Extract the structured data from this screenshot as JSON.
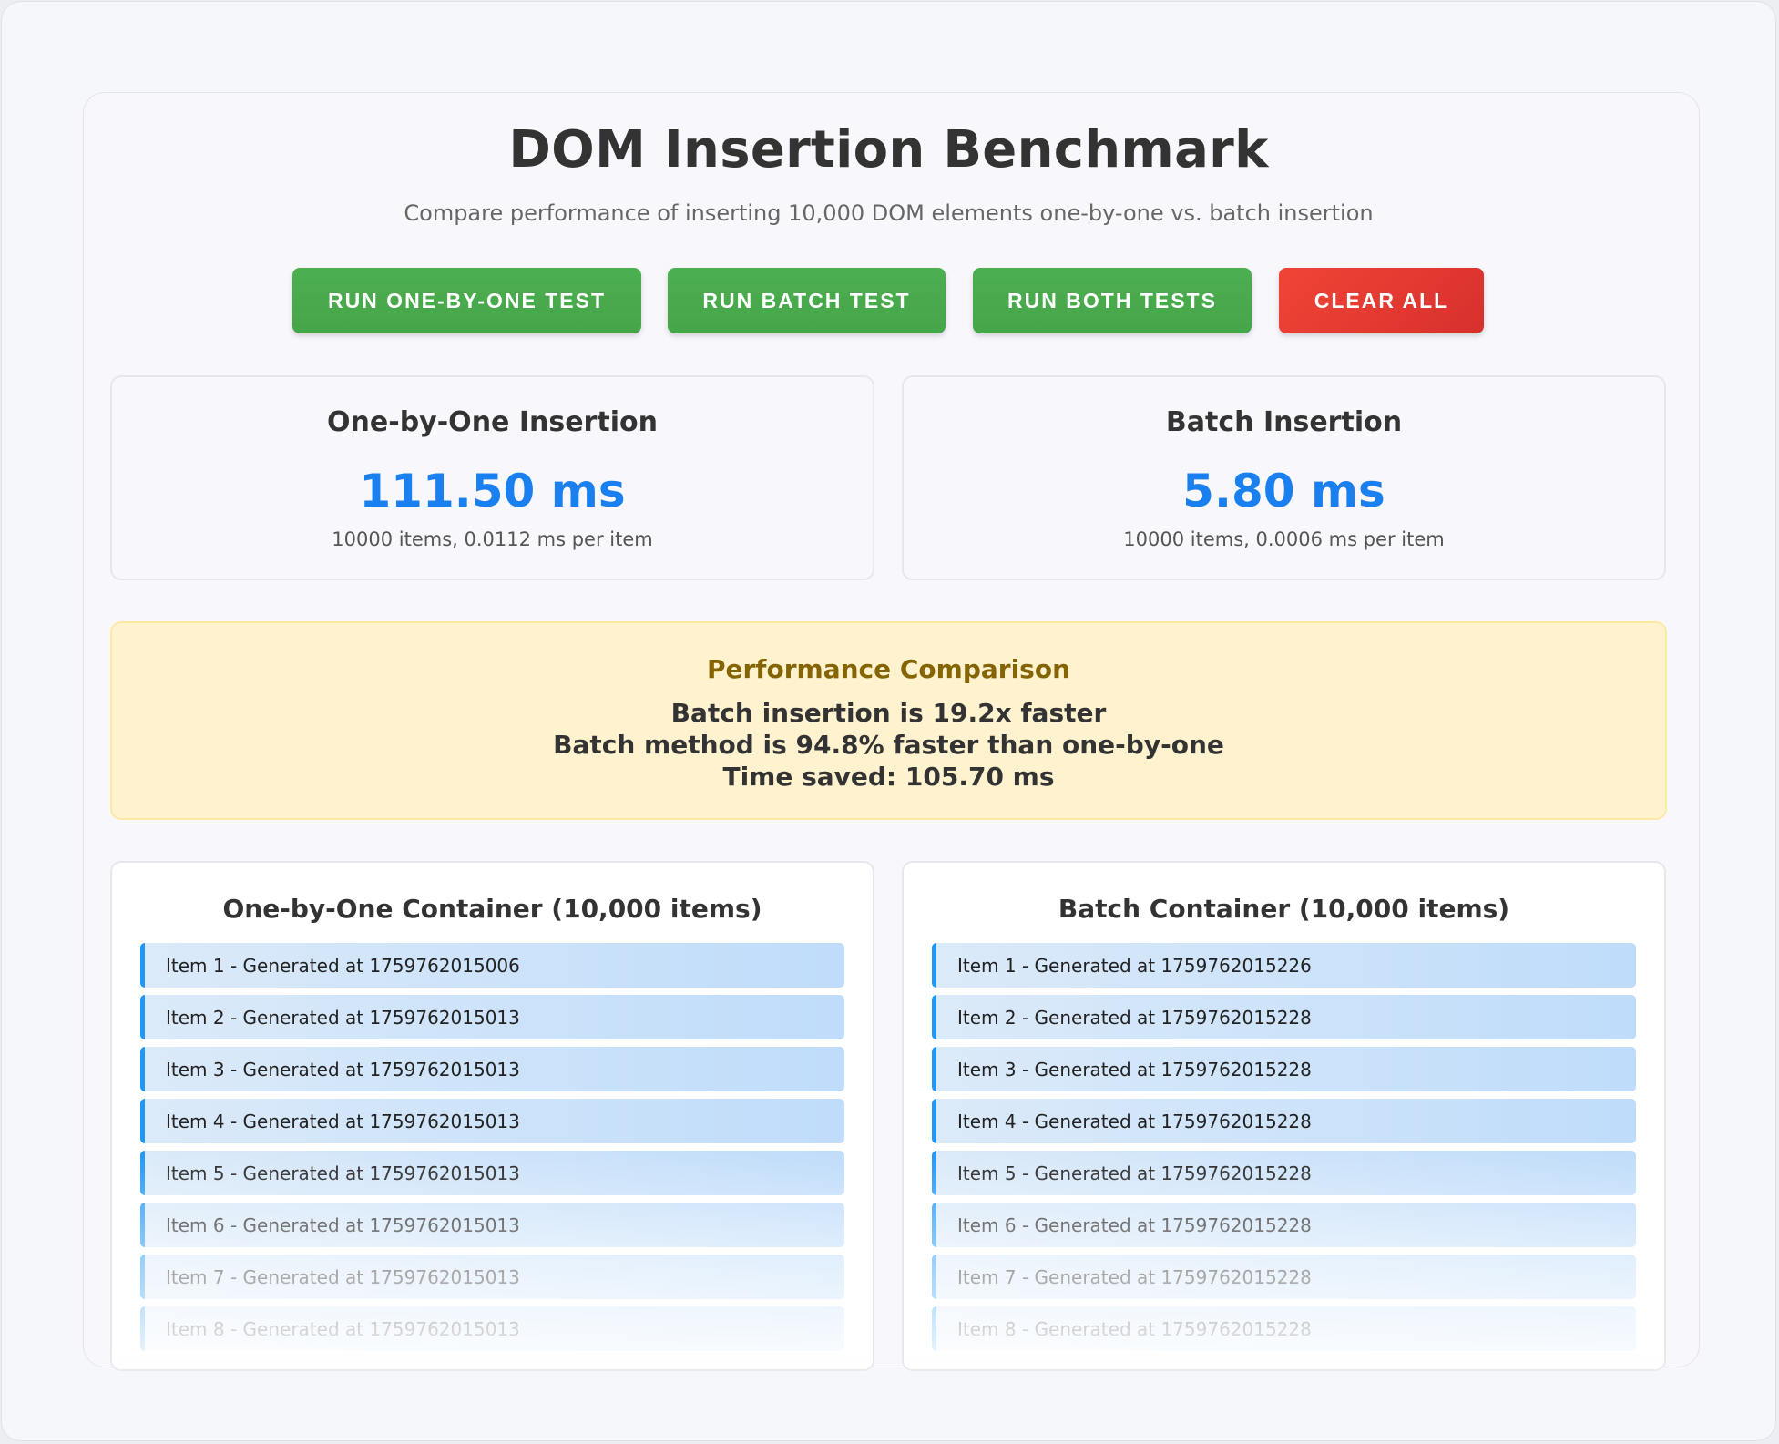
{
  "header": {
    "title": "DOM Insertion Benchmark",
    "subtitle": "Compare performance of inserting 10,000 DOM elements one-by-one vs. batch insertion"
  },
  "buttons": {
    "run_one_by_one": "RUN ONE-BY-ONE TEST",
    "run_batch": "RUN BATCH TEST",
    "run_both": "RUN BOTH TESTS",
    "clear_all": "CLEAR ALL"
  },
  "stats": {
    "one_by_one": {
      "title": "One-by-One Insertion",
      "value": "111.50 ms",
      "detail": "10000 items, 0.0112 ms per item"
    },
    "batch": {
      "title": "Batch Insertion",
      "value": "5.80 ms",
      "detail": "10000 items, 0.0006 ms per item"
    }
  },
  "comparison": {
    "title": "Performance Comparison",
    "line1": "Batch insertion is 19.2x faster",
    "line2": "Batch method is 94.8% faster than one-by-one",
    "line3": "Time saved: 105.70 ms"
  },
  "containers": {
    "one_by_one": {
      "title": "One-by-One Container (10,000 items)",
      "items": [
        "Item 1 - Generated at 1759762015006",
        "Item 2 - Generated at 1759762015013",
        "Item 3 - Generated at 1759762015013",
        "Item 4 - Generated at 1759762015013",
        "Item 5 - Generated at 1759762015013",
        "Item 6 - Generated at 1759762015013",
        "Item 7 - Generated at 1759762015013",
        "Item 8 - Generated at 1759762015013"
      ]
    },
    "batch": {
      "title": "Batch Container (10,000 items)",
      "items": [
        "Item 1 - Generated at 1759762015226",
        "Item 2 - Generated at 1759762015228",
        "Item 3 - Generated at 1759762015228",
        "Item 4 - Generated at 1759762015228",
        "Item 5 - Generated at 1759762015228",
        "Item 6 - Generated at 1759762015228",
        "Item 7 - Generated at 1759762015228",
        "Item 8 - Generated at 1759762015228"
      ]
    }
  },
  "colors": {
    "primary_button": "#4caf50",
    "danger_button": "#e53935",
    "value_blue": "#1a7fef",
    "comparison_bg": "#fff3cf",
    "comparison_title": "#856404",
    "item_border": "#2196f3"
  }
}
